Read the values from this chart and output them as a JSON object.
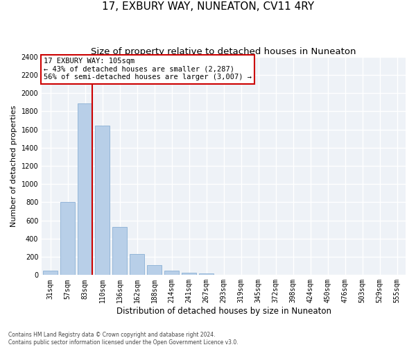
{
  "title": "17, EXBURY WAY, NUNEATON, CV11 4RY",
  "subtitle": "Size of property relative to detached houses in Nuneaton",
  "xlabel": "Distribution of detached houses by size in Nuneaton",
  "ylabel": "Number of detached properties",
  "categories": [
    "31sqm",
    "57sqm",
    "83sqm",
    "110sqm",
    "136sqm",
    "162sqm",
    "188sqm",
    "214sqm",
    "241sqm",
    "267sqm",
    "293sqm",
    "319sqm",
    "345sqm",
    "372sqm",
    "398sqm",
    "424sqm",
    "450sqm",
    "476sqm",
    "503sqm",
    "529sqm",
    "555sqm"
  ],
  "values": [
    50,
    800,
    1890,
    1645,
    530,
    235,
    107,
    47,
    28,
    18,
    0,
    0,
    0,
    0,
    0,
    0,
    0,
    0,
    0,
    0,
    0
  ],
  "bar_color": "#b8cfe8",
  "bar_edge_color": "#8aafd4",
  "property_line_color": "#cc0000",
  "annotation_text": "17 EXBURY WAY: 105sqm\n← 43% of detached houses are smaller (2,287)\n56% of semi-detached houses are larger (3,007) →",
  "annotation_box_color": "#ffffff",
  "annotation_box_edge_color": "#cc0000",
  "ylim": [
    0,
    2400
  ],
  "yticks": [
    0,
    200,
    400,
    600,
    800,
    1000,
    1200,
    1400,
    1600,
    1800,
    2000,
    2200,
    2400
  ],
  "background_color": "#eef2f7",
  "grid_color": "#ffffff",
  "footer": "Contains HM Land Registry data © Crown copyright and database right 2024.\nContains public sector information licensed under the Open Government Licence v3.0.",
  "title_fontsize": 11,
  "subtitle_fontsize": 9.5,
  "ylabel_fontsize": 8,
  "xlabel_fontsize": 8.5,
  "tick_fontsize": 7,
  "annotation_fontsize": 7.5,
  "footer_fontsize": 5.5
}
